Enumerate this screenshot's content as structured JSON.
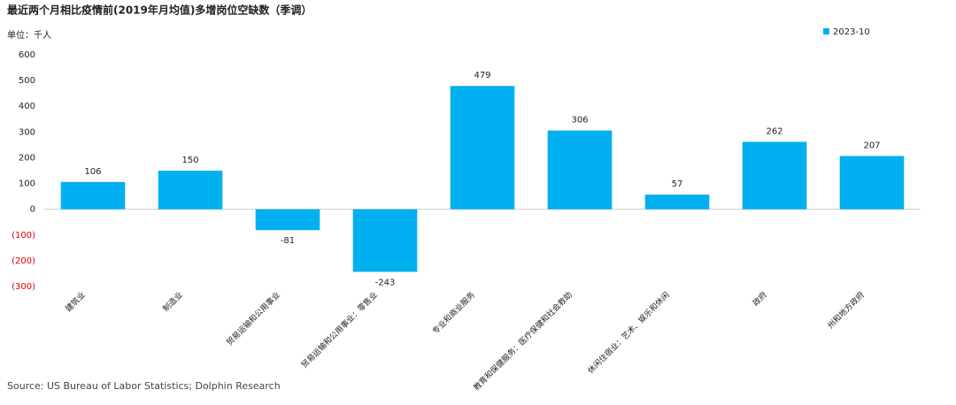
{
  "chart_data": {
    "type": "bar",
    "title": "最近两个月相比疫情前(2019年月均值)多增岗位空缺数（季调）",
    "unit_label": "单位：千人",
    "source": "Source: US Bureau of Labor Statistics; Dolphin Research",
    "categories": [
      "建筑业",
      "制造业",
      "贸易运输和公用事业",
      "贸易运输和公用事业：零售业",
      "专业和商业服务",
      "教育和保健服务：医疗保健和社会救助",
      "休闲住宿业：艺术、娱乐和休闲",
      "政府",
      "州和地方政府"
    ],
    "series": [
      {
        "name": "2023-10",
        "color": "#00b0f0",
        "values": [
          106,
          150,
          -81,
          -243,
          479,
          306,
          57,
          262,
          207
        ]
      }
    ],
    "ylim": [
      -300,
      600
    ],
    "yticks": [
      {
        "value": -300,
        "label": "(300)"
      },
      {
        "value": -200,
        "label": "(200)"
      },
      {
        "value": -100,
        "label": "(100)"
      },
      0,
      100,
      200,
      300,
      400,
      500,
      600
    ],
    "legend": "top-right"
  }
}
